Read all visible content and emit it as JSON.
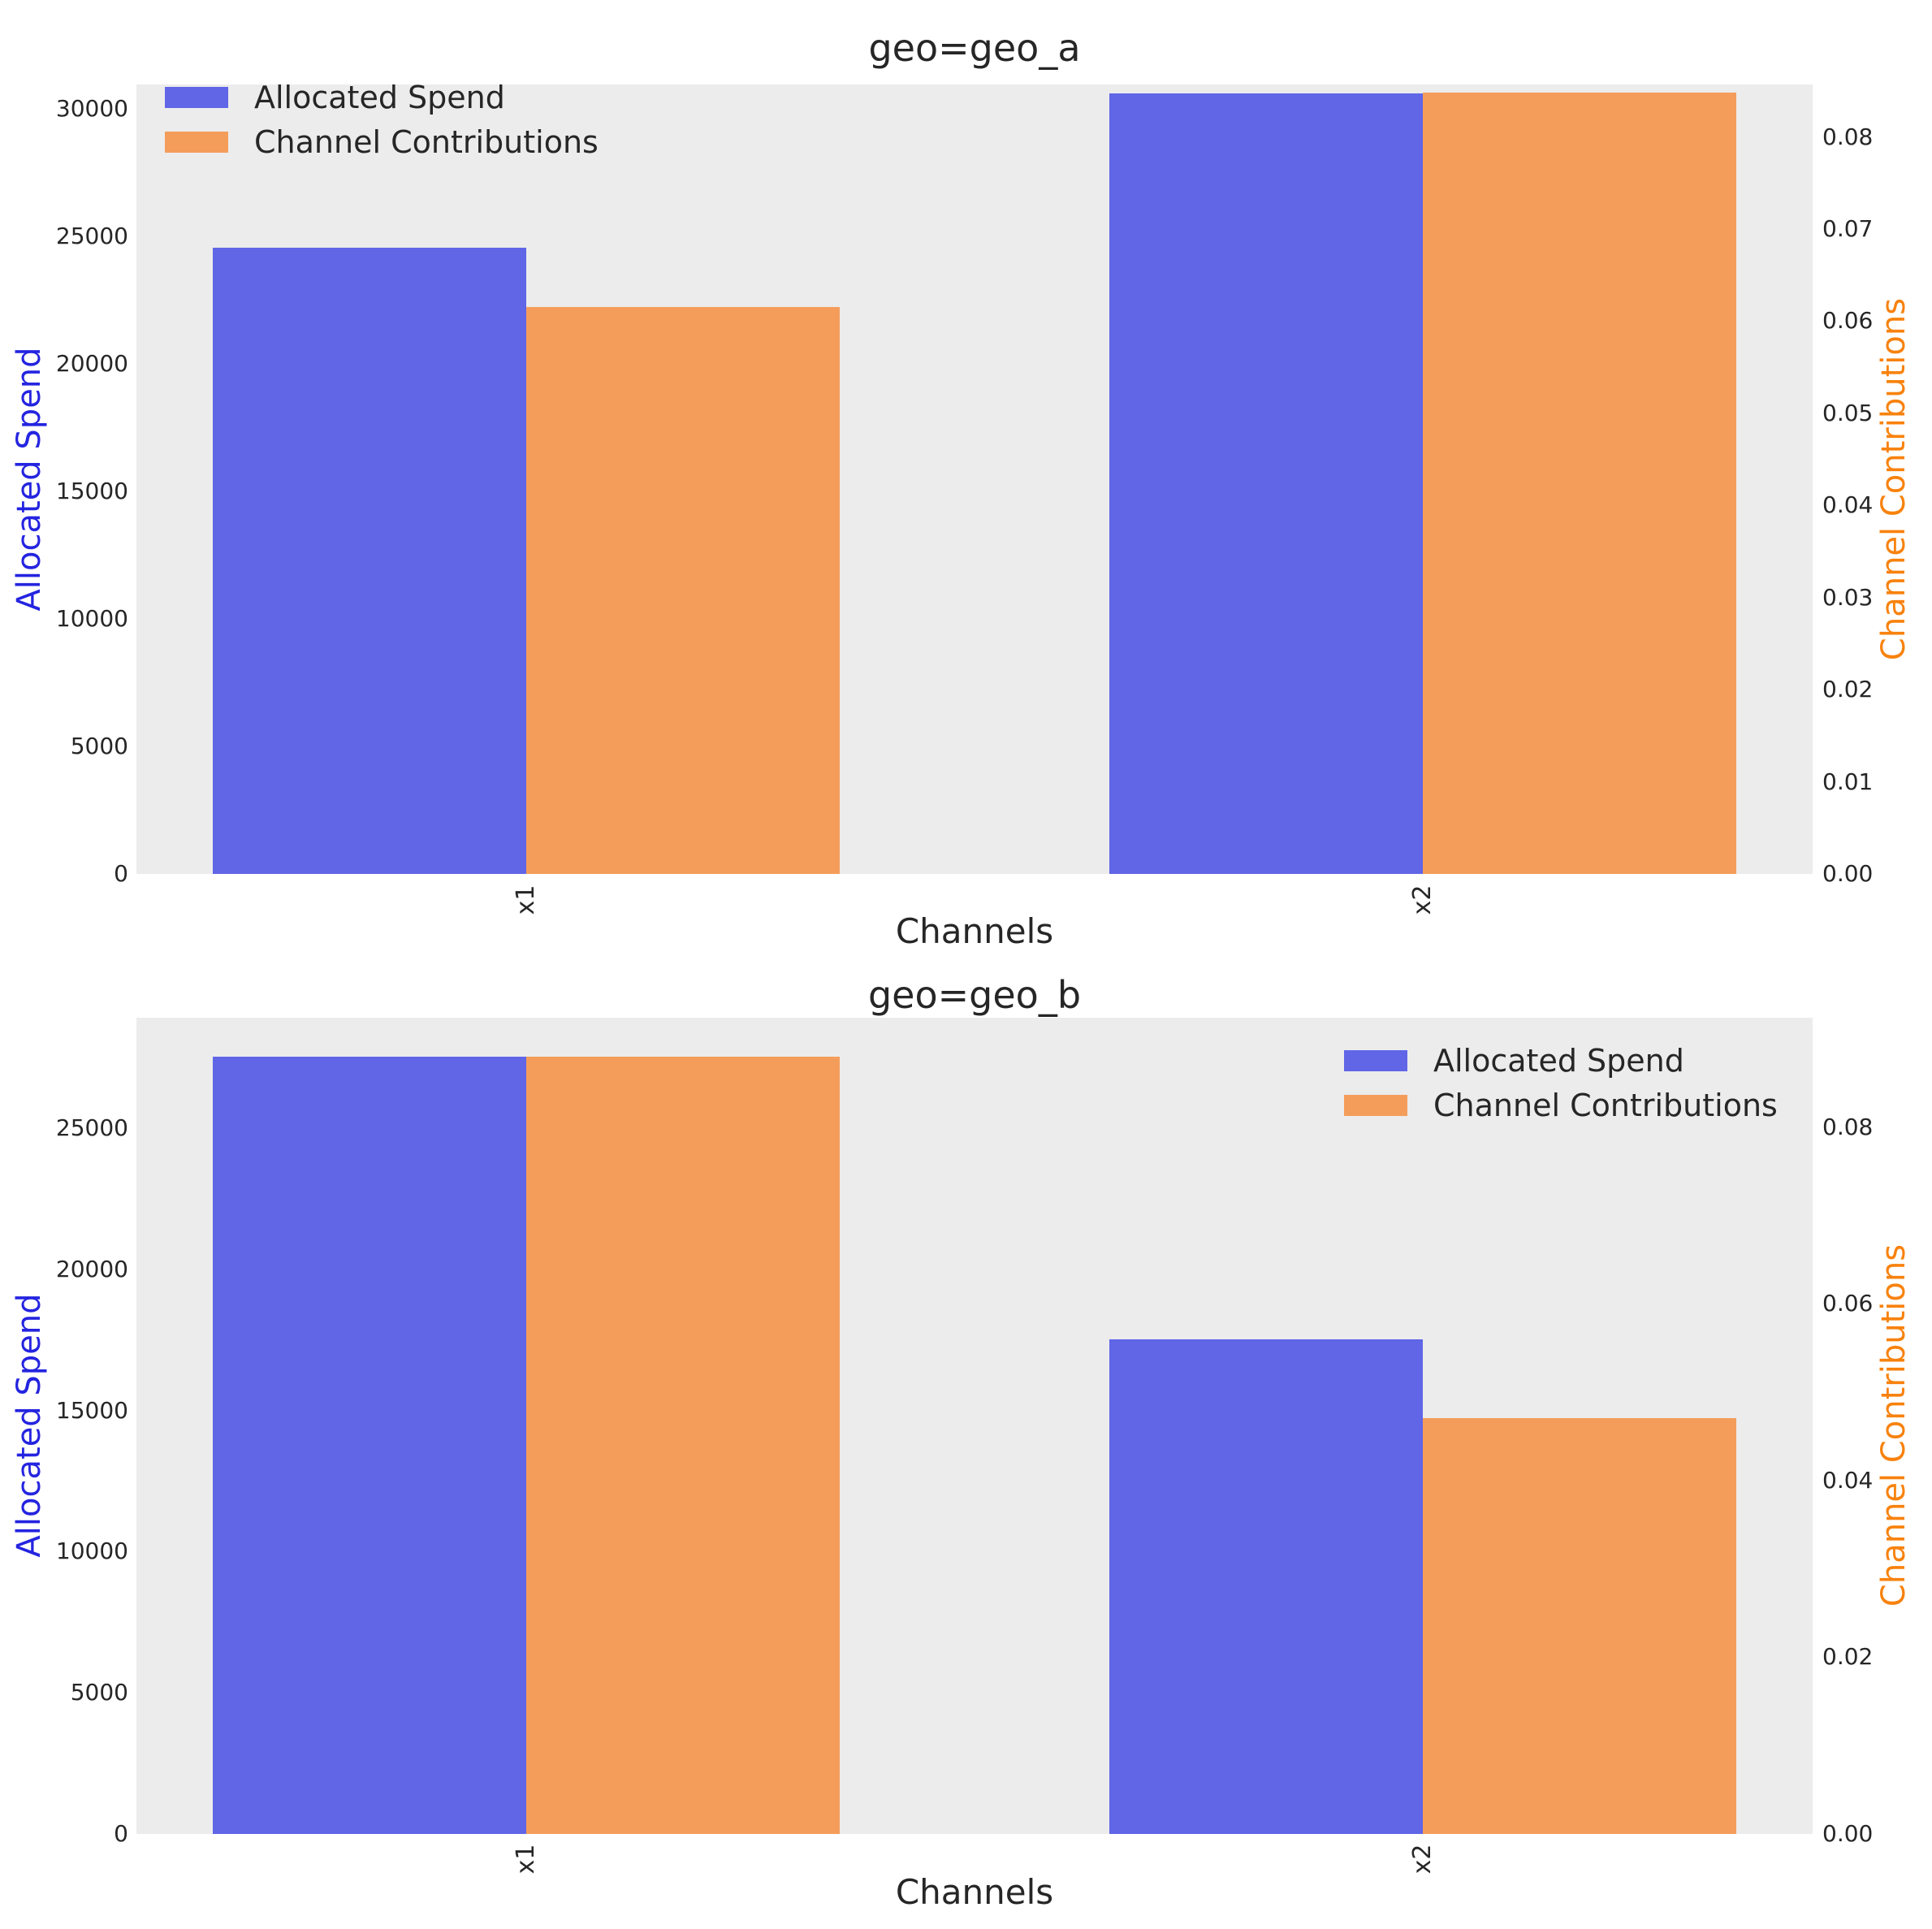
{
  "figure": {
    "background": "#ffffff",
    "plot_background": "#ececec",
    "text_color": "#262626"
  },
  "colors": {
    "spend_bar": "#6066e6",
    "contribution_bar": "#f49d5b",
    "spend_axis_label": "#2424e0",
    "contribution_axis_label": "#f8820d"
  },
  "chart_data": [
    {
      "type": "bar",
      "title": "geo=geo_a",
      "xlabel": "Channels",
      "ylabel_left": "Allocated Spend",
      "ylabel_right": "Channel Contributions",
      "categories": [
        "x1",
        "x2"
      ],
      "series": [
        {
          "name": "Allocated Spend",
          "axis": "left",
          "color": "#6066e6",
          "values": [
            24550,
            30600
          ]
        },
        {
          "name": "Channel Contributions",
          "axis": "right",
          "color": "#f49d5b",
          "values": [
            0.0615,
            0.0848
          ]
        }
      ],
      "ylim_left": [
        0,
        30950
      ],
      "ylim_right": [
        0,
        0.0857
      ],
      "yticks_left": [
        "0",
        "5000",
        "10000",
        "15000",
        "20000",
        "25000",
        "30000"
      ],
      "yticks_right": [
        "0.00",
        "0.01",
        "0.02",
        "0.03",
        "0.04",
        "0.05",
        "0.06",
        "0.07",
        "0.08"
      ],
      "legend_position": "upper-left",
      "grid": false
    },
    {
      "type": "bar",
      "title": "geo=geo_b",
      "xlabel": "Channels",
      "ylabel_left": "Allocated Spend",
      "ylabel_right": "Channel Contributions",
      "categories": [
        "x1",
        "x2"
      ],
      "series": [
        {
          "name": "Allocated Spend",
          "axis": "left",
          "color": "#6066e6",
          "values": [
            27530,
            17530
          ]
        },
        {
          "name": "Channel Contributions",
          "axis": "right",
          "color": "#f49d5b",
          "values": [
            0.088,
            0.0471
          ]
        }
      ],
      "ylim_left": [
        0,
        28910
      ],
      "ylim_right": [
        0,
        0.0924
      ],
      "yticks_left": [
        "0",
        "5000",
        "10000",
        "15000",
        "20000",
        "25000"
      ],
      "yticks_right": [
        "0.00",
        "0.02",
        "0.04",
        "0.06",
        "0.08"
      ],
      "legend_position": "upper-right",
      "grid": false
    }
  ]
}
